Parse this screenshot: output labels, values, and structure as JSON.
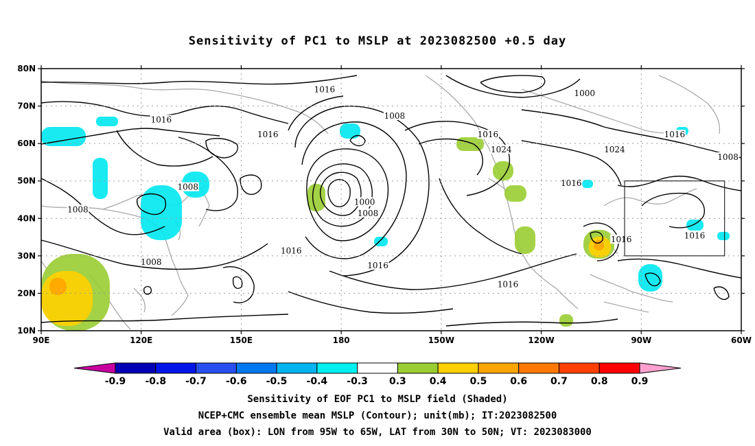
{
  "title": "Sensitivity of PC1 to MSLP at 2023082500 +0.5 day",
  "map": {
    "lon_range": [
      90,
      300
    ],
    "lat_range": [
      10,
      80
    ],
    "lat_ticks": [
      {
        "lat": 80,
        "label": "80N"
      },
      {
        "lat": 70,
        "label": "70N"
      },
      {
        "lat": 60,
        "label": "60N"
      },
      {
        "lat": 50,
        "label": "50N"
      },
      {
        "lat": 40,
        "label": "40N"
      },
      {
        "lat": 30,
        "label": "30N"
      },
      {
        "lat": 20,
        "label": "20N"
      },
      {
        "lat": 10,
        "label": "10N"
      }
    ],
    "lon_ticks": [
      {
        "lon": 90,
        "label": "90E"
      },
      {
        "lon": 120,
        "label": "120E"
      },
      {
        "lon": 150,
        "label": "150E"
      },
      {
        "lon": 180,
        "label": "180"
      },
      {
        "lon": 210,
        "label": "150W"
      },
      {
        "lon": 240,
        "label": "120W"
      },
      {
        "lon": 270,
        "label": "90W"
      },
      {
        "lon": 300,
        "label": "60W"
      }
    ],
    "valid_box": {
      "lon_w": 265,
      "lon_e": 295,
      "lat_s": 30,
      "lat_n": 50
    },
    "contour_labels": [
      {
        "text": "1016",
        "lon": 175,
        "lat": 74
      },
      {
        "text": "1000",
        "lon": 253,
        "lat": 73
      },
      {
        "text": "1008",
        "lon": 196,
        "lat": 67
      },
      {
        "text": "1016",
        "lon": 126,
        "lat": 66
      },
      {
        "text": "1016",
        "lon": 158,
        "lat": 62
      },
      {
        "text": "1016",
        "lon": 224,
        "lat": 62
      },
      {
        "text": "1024",
        "lon": 228,
        "lat": 58
      },
      {
        "text": "1024",
        "lon": 262,
        "lat": 58
      },
      {
        "text": "1016",
        "lon": 280,
        "lat": 62
      },
      {
        "text": "1008",
        "lon": 296,
        "lat": 56
      },
      {
        "text": "1016",
        "lon": 249,
        "lat": 49
      },
      {
        "text": "1008",
        "lon": 134,
        "lat": 48
      },
      {
        "text": "1008",
        "lon": 101,
        "lat": 42
      },
      {
        "text": "1000",
        "lon": 187,
        "lat": 44
      },
      {
        "text": "1008",
        "lon": 188,
        "lat": 41
      },
      {
        "text": "1016",
        "lon": 165,
        "lat": 31
      },
      {
        "text": "1008",
        "lon": 123,
        "lat": 28
      },
      {
        "text": "1016",
        "lon": 191,
        "lat": 27
      },
      {
        "text": "1016",
        "lon": 264,
        "lat": 34
      },
      {
        "text": "1016",
        "lon": 286,
        "lat": 35
      },
      {
        "text": "1016",
        "lon": 230,
        "lat": 22
      }
    ]
  },
  "colorbar": {
    "labels": [
      "-0.9",
      "-0.8",
      "-0.7",
      "-0.6",
      "-0.5",
      "-0.4",
      "-0.3",
      "0.3",
      "0.4",
      "0.5",
      "0.6",
      "0.7",
      "0.8",
      "0.9"
    ],
    "colors": [
      "#0000b4",
      "#0016e8",
      "#2850f0",
      "#0078f0",
      "#00b4f0",
      "#00f0f0",
      "#ffffff",
      "#9acd32",
      "#ffd000",
      "#ffa500",
      "#ff7800",
      "#ff4000",
      "#ff0000"
    ],
    "low_end_color": "#c800a0",
    "high_end_color": "#ffa0d0"
  },
  "captions": [
    "Sensitivity of EOF PC1 to MSLP field (Shaded)",
    "NCEP+CMC ensemble mean MSLP (Contour); unit(mb); IT:2023082500",
    "Valid area (box): LON from 95W to 65W, LAT from 30N to 50N; VT: 2023083000"
  ]
}
